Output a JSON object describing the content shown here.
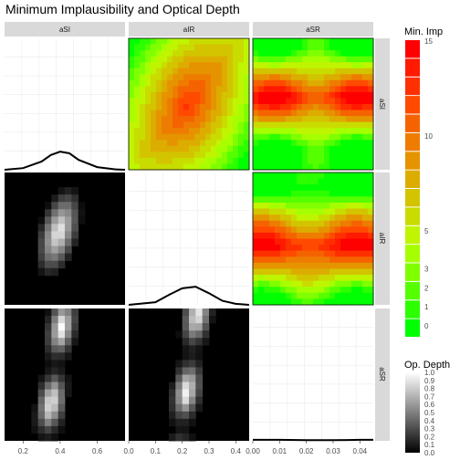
{
  "chart_data": {
    "type": "heatmap",
    "title": "Minimum Implausibility and Optical Depth",
    "variables": [
      "aSI",
      "aIR",
      "aSR"
    ],
    "x_axes": [
      {
        "variable": "aSI",
        "ticks": [
          "0.2",
          "0.4",
          "0.6"
        ],
        "tick_values": [
          0.2,
          0.4,
          0.6
        ],
        "range": [
          0.1,
          0.75
        ]
      },
      {
        "variable": "aIR",
        "ticks": [
          "0.0",
          "0.1",
          "0.2",
          "0.3",
          "0.4"
        ],
        "tick_values": [
          0.0,
          0.1,
          0.2,
          0.3,
          0.4
        ],
        "range": [
          0.0,
          0.45
        ]
      },
      {
        "variable": "aSR",
        "ticks": [
          "0.00",
          "0.01",
          "0.02",
          "0.03",
          "0.04"
        ],
        "tick_values": [
          0.0,
          0.01,
          0.02,
          0.03,
          0.04
        ],
        "range": [
          0.0,
          0.045
        ]
      }
    ],
    "upper_panels": "minimum implausibility contour heatmap",
    "lower_panels": "optical depth heatmap",
    "diagonal_panels": "one-dimensional density",
    "density_aSI": {
      "x": [
        0.1,
        0.2,
        0.3,
        0.35,
        0.4,
        0.45,
        0.5,
        0.6,
        0.7,
        0.75
      ],
      "y": [
        0.0,
        0.05,
        0.25,
        0.45,
        0.55,
        0.5,
        0.3,
        0.08,
        0.01,
        0.0
      ]
    },
    "density_aIR": {
      "x": [
        0.0,
        0.1,
        0.15,
        0.2,
        0.25,
        0.3,
        0.35,
        0.4,
        0.45
      ],
      "y": [
        0.0,
        0.08,
        0.3,
        0.5,
        0.55,
        0.35,
        0.12,
        0.03,
        0.0
      ]
    },
    "density_aSR": {
      "x": [
        0.0,
        0.01,
        0.02,
        0.03,
        0.04,
        0.045
      ],
      "y": [
        0.03,
        0.03,
        0.02,
        0.02,
        0.03,
        0.03
      ]
    },
    "legends": [
      {
        "title": "Min. Imp",
        "labels": [
          "15",
          "10",
          "5",
          "3",
          "2",
          "1",
          "0"
        ],
        "label_values": [
          15,
          10,
          5,
          3,
          2,
          1,
          0
        ],
        "colors": [
          "#ff0000",
          "#ff1a00",
          "#ff3000",
          "#ff4a00",
          "#f56300",
          "#ee7c00",
          "#e59400",
          "#dcad00",
          "#d3c400",
          "#c9dc00",
          "#bff500",
          "#a6ff00",
          "#80ff00",
          "#55ff00",
          "#2bff00",
          "#00ff00"
        ]
      },
      {
        "title": "Op. Depth",
        "labels": [
          "1.0",
          "0.9",
          "0.8",
          "0.7",
          "0.6",
          "0.5",
          "0.4",
          "0.3",
          "0.2",
          "0.1",
          "0.0"
        ],
        "label_values": [
          1.0,
          0.9,
          0.8,
          0.7,
          0.6,
          0.5,
          0.4,
          0.3,
          0.2,
          0.1,
          0.0
        ],
        "scale": "black-to-white"
      }
    ]
  }
}
